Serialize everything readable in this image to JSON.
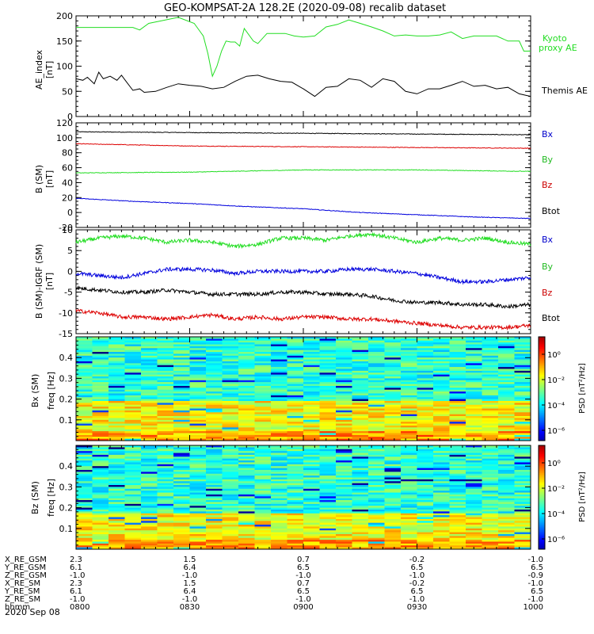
{
  "title": "GEO-KOMPSAT-2A 128.2E (2020-09-08) recalib dataset",
  "colors": {
    "black": "#000000",
    "green": "#22dd22",
    "blue": "#0000dd",
    "red": "#dd0000",
    "bright_green": "#33ee33",
    "label_blue": "#0000cc",
    "label_green": "#22bb22",
    "label_red": "#cc0000"
  },
  "panels": {
    "ae": {
      "ylabel": [
        "AE_index",
        "[nT]"
      ],
      "ylim": [
        0,
        200
      ],
      "ticks": [
        "0",
        "50",
        "100",
        "150",
        "200"
      ],
      "legend": [
        {
          "text": "Kyoto",
          "color": "#22dd22"
        },
        {
          "text": "proxy AE",
          "color": "#22dd22"
        },
        {
          "text": "Themis AE",
          "color": "#000000"
        }
      ]
    },
    "b_sm": {
      "ylabel": [
        "B (SM)",
        "[nT]"
      ],
      "ylim": [
        -20,
        120
      ],
      "ticks": [
        "-20",
        "0",
        "20",
        "40",
        "60",
        "80",
        "100",
        "120"
      ],
      "legend": [
        {
          "text": "Bx",
          "color": "#0000cc"
        },
        {
          "text": "By",
          "color": "#22bb22"
        },
        {
          "text": "Bz",
          "color": "#cc0000"
        },
        {
          "text": "Btot",
          "color": "#000000"
        }
      ]
    },
    "db": {
      "ylabel": [
        "B (SM)-IGRF (SM)",
        "[nT]"
      ],
      "ylim": [
        -15,
        10
      ],
      "ticks": [
        "-15",
        "-10",
        "-5",
        "0",
        "5",
        "10"
      ],
      "legend": [
        {
          "text": "Bx",
          "color": "#0000cc"
        },
        {
          "text": "By",
          "color": "#22bb22"
        },
        {
          "text": "Bz",
          "color": "#cc0000"
        },
        {
          "text": "Btot",
          "color": "#000000"
        }
      ]
    },
    "spec_bx": {
      "ylabel": [
        "Bx (SM)",
        "freq [Hz]"
      ],
      "ylim": [
        0,
        0.5
      ],
      "ticks": [
        "0.1",
        "0.2",
        "0.3",
        "0.4"
      ],
      "colorbar": {
        "label": "PSD [nT²/Hz]",
        "ticks": [
          "10⁰",
          "10⁻²",
          "10⁻⁴",
          "10⁻⁶"
        ]
      }
    },
    "spec_bz": {
      "ylabel": [
        "Bz (SM)",
        "freq [Hz]"
      ],
      "ylim": [
        0,
        0.5
      ],
      "ticks": [
        "0.1",
        "0.2",
        "0.3",
        "0.4"
      ],
      "colorbar": {
        "label": "PSD [nT²/Hz]",
        "ticks": [
          "10⁰",
          "10⁻²",
          "10⁻⁴",
          "10⁻⁶"
        ]
      }
    }
  },
  "ephemeris": {
    "labels": [
      "X_RE_GSM",
      "Y_RE_GSM",
      "Z_RE_GSM",
      "X_RE_SM",
      "Y_RE_SM",
      "Z_RE_SM",
      "hhmm"
    ],
    "columns": [
      [
        "2.3",
        "6.1",
        "-1.0",
        "2.3",
        "6.1",
        "-1.0",
        "0800"
      ],
      [
        "1.5",
        "6.4",
        "-1.0",
        "1.5",
        "6.4",
        "-1.0",
        "0830"
      ],
      [
        "0.7",
        "6.5",
        "-1.0",
        "0.7",
        "6.5",
        "-1.0",
        "0900"
      ],
      [
        "-0.2",
        "6.5",
        "-1.0",
        "-0.2",
        "6.5",
        "-1.0",
        "0930"
      ],
      [
        "-1.0",
        "6.5",
        "-0.9",
        "-1.0",
        "6.5",
        "-1.0",
        "1000"
      ]
    ],
    "date": "2020 Sep 08"
  },
  "chart_data": [
    {
      "type": "line",
      "x_unit": "hours UT",
      "xlim": [
        8,
        10
      ],
      "ylim": [
        0,
        200
      ],
      "series": [
        {
          "name": "Kyoto proxy AE",
          "color": "#22dd22",
          "x": [
            8.0,
            8.15,
            8.25,
            8.28,
            8.32,
            8.45,
            8.52,
            8.56,
            8.58,
            8.6,
            8.62,
            8.64,
            8.66,
            8.68,
            8.7,
            8.72,
            8.74,
            8.78,
            8.8,
            8.84,
            8.88,
            8.92,
            8.96,
            9.0,
            9.05,
            9.1,
            9.15,
            9.2,
            9.25,
            9.3,
            9.35,
            9.4,
            9.45,
            9.5,
            9.55,
            9.6,
            9.65,
            9.7,
            9.75,
            9.8,
            9.85,
            9.9,
            9.95,
            9.97,
            10.0
          ],
          "y": [
            177,
            177,
            177,
            172,
            185,
            197,
            185,
            160,
            125,
            80,
            100,
            130,
            150,
            148,
            148,
            140,
            175,
            150,
            145,
            165,
            165,
            165,
            160,
            158,
            160,
            178,
            183,
            192,
            185,
            178,
            170,
            160,
            162,
            160,
            160,
            162,
            168,
            155,
            160,
            160,
            160,
            150,
            150,
            130,
            130
          ]
        },
        {
          "name": "Themis AE",
          "color": "#000000",
          "x": [
            8.0,
            8.03,
            8.05,
            8.08,
            8.1,
            8.12,
            8.15,
            8.18,
            8.2,
            8.22,
            8.25,
            8.28,
            8.3,
            8.35,
            8.4,
            8.45,
            8.5,
            8.55,
            8.6,
            8.65,
            8.7,
            8.75,
            8.8,
            8.85,
            8.9,
            8.95,
            9.0,
            9.05,
            9.1,
            9.15,
            9.2,
            9.25,
            9.3,
            9.35,
            9.4,
            9.45,
            9.5,
            9.55,
            9.6,
            9.65,
            9.7,
            9.75,
            9.8,
            9.85,
            9.9,
            9.95,
            10.0
          ],
          "y": [
            75,
            72,
            78,
            65,
            88,
            75,
            80,
            72,
            82,
            70,
            52,
            55,
            48,
            50,
            58,
            65,
            62,
            60,
            55,
            58,
            70,
            80,
            82,
            75,
            70,
            68,
            55,
            40,
            58,
            60,
            75,
            72,
            58,
            75,
            70,
            50,
            45,
            55,
            55,
            62,
            70,
            60,
            62,
            55,
            58,
            45,
            40
          ]
        }
      ]
    },
    {
      "type": "line",
      "x_unit": "hours UT",
      "xlim": [
        8,
        10
      ],
      "ylim": [
        -20,
        120
      ],
      "series": [
        {
          "name": "Btot",
          "color": "#000000",
          "x": [
            8.0,
            8.5,
            9.0,
            9.5,
            10.0
          ],
          "y": [
            108,
            107,
            106,
            105,
            104
          ]
        },
        {
          "name": "Bz",
          "color": "#dd0000",
          "x": [
            8.0,
            8.5,
            9.0,
            9.5,
            10.0
          ],
          "y": [
            92,
            89,
            88,
            87,
            86
          ]
        },
        {
          "name": "By",
          "color": "#22dd22",
          "x": [
            8.0,
            8.5,
            9.0,
            9.5,
            10.0
          ],
          "y": [
            53,
            54,
            57,
            57,
            55
          ]
        },
        {
          "name": "Bx",
          "color": "#0000dd",
          "x": [
            8.0,
            8.25,
            8.5,
            8.75,
            9.0,
            9.25,
            9.5,
            9.75,
            10.0
          ],
          "y": [
            19,
            15,
            12,
            8,
            5,
            0,
            -3,
            -6,
            -8
          ]
        }
      ]
    },
    {
      "type": "line",
      "x_unit": "hours UT",
      "xlim": [
        8,
        10
      ],
      "ylim": [
        -15,
        10
      ],
      "series": [
        {
          "name": "By",
          "color": "#22dd22",
          "x": [
            8.0,
            8.1,
            8.2,
            8.3,
            8.4,
            8.5,
            8.6,
            8.7,
            8.8,
            8.9,
            9.0,
            9.1,
            9.2,
            9.3,
            9.4,
            9.5,
            9.6,
            9.7,
            9.8,
            9.9,
            10.0
          ],
          "y": [
            7,
            8,
            8.5,
            8,
            7,
            7.5,
            7,
            6,
            6.5,
            8,
            8,
            7.5,
            8.5,
            9,
            8,
            7,
            8,
            7.5,
            8,
            7,
            6.5
          ]
        },
        {
          "name": "Bx",
          "color": "#0000dd",
          "x": [
            8.0,
            8.1,
            8.2,
            8.3,
            8.4,
            8.5,
            8.6,
            8.7,
            8.8,
            8.9,
            9.0,
            9.1,
            9.2,
            9.3,
            9.4,
            9.5,
            9.6,
            9.7,
            9.8,
            9.9,
            10.0
          ],
          "y": [
            -0.5,
            -1,
            -1.5,
            -0.5,
            0.5,
            0.5,
            0.3,
            -0.5,
            0,
            0,
            0,
            0,
            0.5,
            0.5,
            0,
            -0.5,
            -1.5,
            -2.5,
            -2.5,
            -2,
            -1.5
          ]
        },
        {
          "name": "Btot",
          "color": "#000000",
          "x": [
            8.0,
            8.1,
            8.2,
            8.3,
            8.4,
            8.5,
            8.6,
            8.7,
            8.8,
            8.9,
            9.0,
            9.1,
            9.2,
            9.3,
            9.4,
            9.5,
            9.6,
            9.7,
            9.8,
            9.9,
            10.0
          ],
          "y": [
            -4,
            -4.5,
            -5,
            -5,
            -4.5,
            -5,
            -5.5,
            -5.5,
            -5.5,
            -5,
            -5,
            -5.5,
            -5.5,
            -6,
            -7,
            -7.5,
            -7.5,
            -8,
            -8,
            -8.5,
            -8
          ]
        },
        {
          "name": "Bz",
          "color": "#dd0000",
          "x": [
            8.0,
            8.1,
            8.2,
            8.3,
            8.4,
            8.5,
            8.6,
            8.7,
            8.8,
            8.9,
            9.0,
            9.1,
            9.2,
            9.3,
            9.4,
            9.5,
            9.6,
            9.7,
            9.8,
            9.9,
            10.0
          ],
          "y": [
            -9.5,
            -10,
            -11,
            -11,
            -11.5,
            -11,
            -10.5,
            -11.5,
            -11,
            -11.5,
            -11,
            -11,
            -11.5,
            -11.5,
            -12,
            -12.5,
            -13,
            -13.5,
            -13.5,
            -13.5,
            -13
          ]
        }
      ]
    },
    {
      "type": "heatmap",
      "name": "Bx (SM) spectrogram",
      "xlim": [
        8,
        10
      ],
      "ylim": [
        0,
        0.5
      ],
      "color_scale": "log PSD",
      "bands": [
        {
          "freq": [
            0.0,
            0.05
          ],
          "level": "yellow-orange"
        },
        {
          "freq": [
            0.05,
            0.19
          ],
          "level": "yellow-green"
        },
        {
          "freq": [
            0.19,
            0.5
          ],
          "level": "green-cyan"
        }
      ]
    },
    {
      "type": "heatmap",
      "name": "Bz (SM) spectrogram",
      "xlim": [
        8,
        10
      ],
      "ylim": [
        0,
        0.5
      ],
      "color_scale": "log PSD",
      "bands": [
        {
          "freq": [
            0.0,
            0.05
          ],
          "level": "yellow-green"
        },
        {
          "freq": [
            0.05,
            0.17
          ],
          "level": "green-yellow"
        },
        {
          "freq": [
            0.17,
            0.5
          ],
          "level": "green-cyan"
        }
      ]
    }
  ]
}
